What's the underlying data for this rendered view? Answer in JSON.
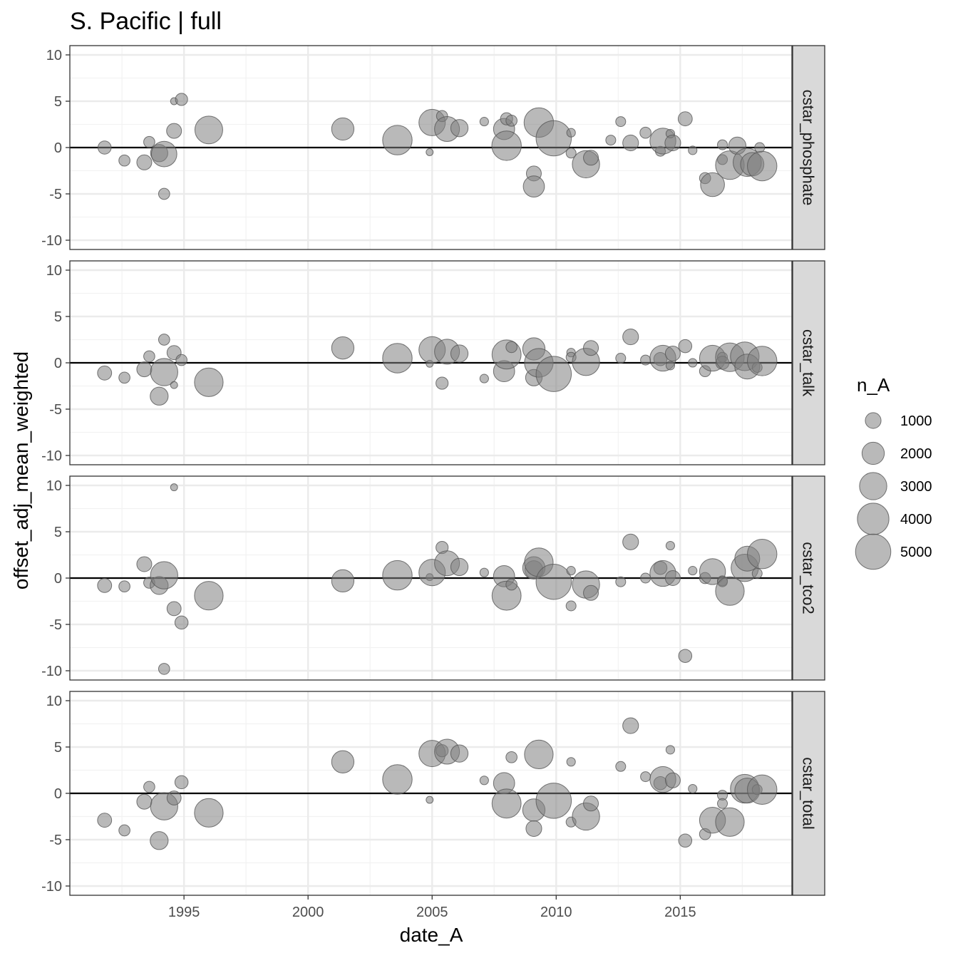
{
  "chart_data": {
    "type": "scatter",
    "title": "S. Pacific | full",
    "xlabel": "date_A",
    "ylabel": "offset_adj_mean_weighted",
    "xlim": [
      1990.4,
      2019.5
    ],
    "ylim": [
      -11,
      11
    ],
    "x_ticks": [
      1995,
      2000,
      2005,
      2010,
      2015
    ],
    "x_tick_labels": [
      "1995",
      "2000",
      "2005",
      "2010",
      "2015"
    ],
    "y_ticks": [
      -10,
      -5,
      0,
      5,
      10
    ],
    "y_tick_labels": [
      "-10",
      "-5",
      "0",
      "5",
      "10"
    ],
    "reference_line_y": 0,
    "grid": true,
    "point_color": "#808080",
    "point_alpha": 0.55,
    "legend": {
      "title": "n_A",
      "position": "right",
      "values": [
        1000,
        2000,
        3000,
        4000,
        5000
      ],
      "labels": [
        "1000",
        "2000",
        "3000",
        "4000",
        "5000"
      ]
    },
    "panels": [
      {
        "label": "cstar_phosphate",
        "points": [
          {
            "x": 1991.8,
            "y": 0.0,
            "n": 700
          },
          {
            "x": 1992.6,
            "y": -1.4,
            "n": 500
          },
          {
            "x": 1993.4,
            "y": -1.6,
            "n": 900
          },
          {
            "x": 1993.6,
            "y": 0.6,
            "n": 500
          },
          {
            "x": 1994.0,
            "y": -0.6,
            "n": 1200
          },
          {
            "x": 1994.2,
            "y": -0.7,
            "n": 2600
          },
          {
            "x": 1994.2,
            "y": -5.0,
            "n": 500
          },
          {
            "x": 1994.6,
            "y": 5.0,
            "n": 200
          },
          {
            "x": 1994.6,
            "y": 1.8,
            "n": 900
          },
          {
            "x": 1994.9,
            "y": 5.2,
            "n": 600
          },
          {
            "x": 1996.0,
            "y": 1.9,
            "n": 3100
          },
          {
            "x": 2001.4,
            "y": 2.0,
            "n": 2000
          },
          {
            "x": 2003.6,
            "y": 0.8,
            "n": 3500
          },
          {
            "x": 2004.9,
            "y": -0.5,
            "n": 200
          },
          {
            "x": 2005.0,
            "y": 2.7,
            "n": 2800
          },
          {
            "x": 2005.4,
            "y": 3.4,
            "n": 500
          },
          {
            "x": 2005.6,
            "y": 2.0,
            "n": 2500
          },
          {
            "x": 2006.1,
            "y": 2.1,
            "n": 1200
          },
          {
            "x": 2007.1,
            "y": 2.8,
            "n": 300
          },
          {
            "x": 2007.9,
            "y": 2.0,
            "n": 1800
          },
          {
            "x": 2008.0,
            "y": 3.1,
            "n": 600
          },
          {
            "x": 2008.0,
            "y": 0.2,
            "n": 3500
          },
          {
            "x": 2008.2,
            "y": 2.9,
            "n": 500
          },
          {
            "x": 2009.1,
            "y": -2.8,
            "n": 900
          },
          {
            "x": 2009.1,
            "y": -4.2,
            "n": 1800
          },
          {
            "x": 2009.3,
            "y": 2.7,
            "n": 3500
          },
          {
            "x": 2009.9,
            "y": 1.0,
            "n": 5000
          },
          {
            "x": 2010.6,
            "y": 1.6,
            "n": 300
          },
          {
            "x": 2010.6,
            "y": -0.6,
            "n": 400
          },
          {
            "x": 2011.2,
            "y": -1.8,
            "n": 3000
          },
          {
            "x": 2011.4,
            "y": -1.1,
            "n": 900
          },
          {
            "x": 2012.2,
            "y": 0.8,
            "n": 400
          },
          {
            "x": 2012.6,
            "y": 2.8,
            "n": 400
          },
          {
            "x": 2013.0,
            "y": 0.5,
            "n": 1000
          },
          {
            "x": 2013.6,
            "y": 1.6,
            "n": 500
          },
          {
            "x": 2014.2,
            "y": -0.4,
            "n": 400
          },
          {
            "x": 2014.3,
            "y": 0.7,
            "n": 2700
          },
          {
            "x": 2014.6,
            "y": 1.5,
            "n": 300
          },
          {
            "x": 2014.7,
            "y": 0.5,
            "n": 1000
          },
          {
            "x": 2015.2,
            "y": 3.1,
            "n": 800
          },
          {
            "x": 2015.5,
            "y": -0.3,
            "n": 300
          },
          {
            "x": 2016.0,
            "y": -3.3,
            "n": 500
          },
          {
            "x": 2016.3,
            "y": -4.0,
            "n": 2300
          },
          {
            "x": 2016.7,
            "y": 0.3,
            "n": 400
          },
          {
            "x": 2016.7,
            "y": -1.3,
            "n": 400
          },
          {
            "x": 2017.0,
            "y": -1.9,
            "n": 3300
          },
          {
            "x": 2017.3,
            "y": 0.2,
            "n": 1200
          },
          {
            "x": 2017.7,
            "y": -1.6,
            "n": 3200
          },
          {
            "x": 2017.9,
            "y": -1.8,
            "n": 2200
          },
          {
            "x": 2018.2,
            "y": 0.0,
            "n": 400
          },
          {
            "x": 2018.3,
            "y": -2.0,
            "n": 3500
          }
        ]
      },
      {
        "label": "cstar_talk",
        "points": [
          {
            "x": 1991.8,
            "y": -1.1,
            "n": 800
          },
          {
            "x": 1992.6,
            "y": -1.6,
            "n": 500
          },
          {
            "x": 1993.4,
            "y": -0.7,
            "n": 900
          },
          {
            "x": 1993.6,
            "y": 0.7,
            "n": 500
          },
          {
            "x": 1994.0,
            "y": -3.6,
            "n": 1300
          },
          {
            "x": 1994.2,
            "y": -1.0,
            "n": 3000
          },
          {
            "x": 1994.2,
            "y": 2.5,
            "n": 500
          },
          {
            "x": 1994.6,
            "y": -2.4,
            "n": 200
          },
          {
            "x": 1994.6,
            "y": 1.1,
            "n": 800
          },
          {
            "x": 1994.9,
            "y": 0.3,
            "n": 500
          },
          {
            "x": 1996.0,
            "y": -2.1,
            "n": 3300
          },
          {
            "x": 2001.4,
            "y": 1.6,
            "n": 2000
          },
          {
            "x": 2003.6,
            "y": 0.5,
            "n": 3500
          },
          {
            "x": 2004.9,
            "y": -0.1,
            "n": 200
          },
          {
            "x": 2005.0,
            "y": 1.4,
            "n": 2800
          },
          {
            "x": 2005.4,
            "y": -2.2,
            "n": 600
          },
          {
            "x": 2005.6,
            "y": 1.2,
            "n": 2500
          },
          {
            "x": 2006.1,
            "y": 1.0,
            "n": 1200
          },
          {
            "x": 2007.1,
            "y": -1.7,
            "n": 300
          },
          {
            "x": 2007.9,
            "y": -0.9,
            "n": 1800
          },
          {
            "x": 2008.0,
            "y": 0.9,
            "n": 3400
          },
          {
            "x": 2008.2,
            "y": 1.7,
            "n": 500
          },
          {
            "x": 2009.1,
            "y": -1.6,
            "n": 1100
          },
          {
            "x": 2009.1,
            "y": 1.5,
            "n": 2000
          },
          {
            "x": 2009.3,
            "y": 0.0,
            "n": 3300
          },
          {
            "x": 2009.9,
            "y": -1.2,
            "n": 5000
          },
          {
            "x": 2010.6,
            "y": 1.1,
            "n": 300
          },
          {
            "x": 2010.6,
            "y": 0.6,
            "n": 400
          },
          {
            "x": 2011.2,
            "y": 0.1,
            "n": 3000
          },
          {
            "x": 2011.4,
            "y": 1.6,
            "n": 900
          },
          {
            "x": 2012.6,
            "y": 0.5,
            "n": 400
          },
          {
            "x": 2013.0,
            "y": 2.8,
            "n": 1000
          },
          {
            "x": 2013.6,
            "y": 0.3,
            "n": 400
          },
          {
            "x": 2014.2,
            "y": 0.4,
            "n": 700
          },
          {
            "x": 2014.3,
            "y": 0.5,
            "n": 2700
          },
          {
            "x": 2014.6,
            "y": -0.3,
            "n": 300
          },
          {
            "x": 2014.7,
            "y": 1.0,
            "n": 900
          },
          {
            "x": 2015.2,
            "y": 1.8,
            "n": 700
          },
          {
            "x": 2015.5,
            "y": 0.0,
            "n": 300
          },
          {
            "x": 2016.0,
            "y": -0.9,
            "n": 500
          },
          {
            "x": 2016.3,
            "y": 0.5,
            "n": 2700
          },
          {
            "x": 2016.7,
            "y": 0.6,
            "n": 400
          },
          {
            "x": 2016.7,
            "y": 0.0,
            "n": 700
          },
          {
            "x": 2017.0,
            "y": 0.6,
            "n": 3300
          },
          {
            "x": 2017.6,
            "y": 0.7,
            "n": 3300
          },
          {
            "x": 2017.7,
            "y": -0.4,
            "n": 2500
          },
          {
            "x": 2018.1,
            "y": -0.5,
            "n": 400
          },
          {
            "x": 2018.3,
            "y": 0.2,
            "n": 3500
          }
        ]
      },
      {
        "label": "cstar_tco2",
        "points": [
          {
            "x": 1991.8,
            "y": -0.8,
            "n": 800
          },
          {
            "x": 1992.6,
            "y": -0.9,
            "n": 500
          },
          {
            "x": 1993.4,
            "y": 1.5,
            "n": 900
          },
          {
            "x": 1993.6,
            "y": -0.5,
            "n": 500
          },
          {
            "x": 1994.0,
            "y": -0.8,
            "n": 1300
          },
          {
            "x": 1994.2,
            "y": 0.3,
            "n": 3000
          },
          {
            "x": 1994.2,
            "y": -9.8,
            "n": 500
          },
          {
            "x": 1994.6,
            "y": 9.8,
            "n": 200
          },
          {
            "x": 1994.6,
            "y": -3.3,
            "n": 800
          },
          {
            "x": 1994.9,
            "y": -4.8,
            "n": 700
          },
          {
            "x": 1996.0,
            "y": -1.9,
            "n": 3300
          },
          {
            "x": 2001.4,
            "y": -0.3,
            "n": 2000
          },
          {
            "x": 2003.6,
            "y": 0.3,
            "n": 3500
          },
          {
            "x": 2004.9,
            "y": 0.1,
            "n": 200
          },
          {
            "x": 2005.0,
            "y": 0.6,
            "n": 2800
          },
          {
            "x": 2005.4,
            "y": 3.3,
            "n": 600
          },
          {
            "x": 2005.6,
            "y": 1.6,
            "n": 2500
          },
          {
            "x": 2006.1,
            "y": 1.2,
            "n": 1200
          },
          {
            "x": 2007.1,
            "y": 0.6,
            "n": 300
          },
          {
            "x": 2007.9,
            "y": 0.2,
            "n": 1800
          },
          {
            "x": 2008.0,
            "y": -1.9,
            "n": 3400
          },
          {
            "x": 2008.2,
            "y": -0.7,
            "n": 500
          },
          {
            "x": 2009.1,
            "y": 0.9,
            "n": 1300
          },
          {
            "x": 2009.1,
            "y": 1.1,
            "n": 2000
          },
          {
            "x": 2009.3,
            "y": 1.7,
            "n": 3300
          },
          {
            "x": 2009.9,
            "y": -0.4,
            "n": 5000
          },
          {
            "x": 2010.6,
            "y": 0.8,
            "n": 300
          },
          {
            "x": 2010.6,
            "y": -3.0,
            "n": 400
          },
          {
            "x": 2011.2,
            "y": -0.7,
            "n": 3000
          },
          {
            "x": 2011.4,
            "y": -1.6,
            "n": 900
          },
          {
            "x": 2012.6,
            "y": -0.4,
            "n": 400
          },
          {
            "x": 2013.0,
            "y": 3.9,
            "n": 1000
          },
          {
            "x": 2013.6,
            "y": 0.0,
            "n": 400
          },
          {
            "x": 2014.2,
            "y": 1.1,
            "n": 700
          },
          {
            "x": 2014.3,
            "y": 0.5,
            "n": 2700
          },
          {
            "x": 2014.6,
            "y": 3.5,
            "n": 300
          },
          {
            "x": 2014.7,
            "y": 0.0,
            "n": 900
          },
          {
            "x": 2015.2,
            "y": -8.4,
            "n": 700
          },
          {
            "x": 2015.5,
            "y": 0.8,
            "n": 300
          },
          {
            "x": 2016.0,
            "y": 0.0,
            "n": 500
          },
          {
            "x": 2016.3,
            "y": 0.7,
            "n": 2700
          },
          {
            "x": 2016.7,
            "y": -0.3,
            "n": 400
          },
          {
            "x": 2016.7,
            "y": -0.4,
            "n": 400
          },
          {
            "x": 2017.0,
            "y": -1.4,
            "n": 3300
          },
          {
            "x": 2017.6,
            "y": 1.1,
            "n": 3000
          },
          {
            "x": 2017.7,
            "y": 2.1,
            "n": 2500
          },
          {
            "x": 2018.1,
            "y": 0.5,
            "n": 400
          },
          {
            "x": 2018.3,
            "y": 2.6,
            "n": 3500
          }
        ]
      },
      {
        "label": "cstar_total",
        "points": [
          {
            "x": 1991.8,
            "y": -2.9,
            "n": 800
          },
          {
            "x": 1992.6,
            "y": -4.0,
            "n": 500
          },
          {
            "x": 1993.4,
            "y": -0.9,
            "n": 900
          },
          {
            "x": 1993.6,
            "y": 0.7,
            "n": 500
          },
          {
            "x": 1994.0,
            "y": -5.1,
            "n": 1300
          },
          {
            "x": 1994.2,
            "y": -1.4,
            "n": 3000
          },
          {
            "x": 1994.6,
            "y": -0.5,
            "n": 800
          },
          {
            "x": 1994.9,
            "y": 1.2,
            "n": 700
          },
          {
            "x": 1996.0,
            "y": -2.1,
            "n": 3300
          },
          {
            "x": 2001.4,
            "y": 3.4,
            "n": 2000
          },
          {
            "x": 2003.6,
            "y": 1.5,
            "n": 3500
          },
          {
            "x": 2004.9,
            "y": -0.7,
            "n": 200
          },
          {
            "x": 2005.0,
            "y": 4.3,
            "n": 2800
          },
          {
            "x": 2005.4,
            "y": 4.6,
            "n": 600
          },
          {
            "x": 2005.6,
            "y": 4.5,
            "n": 2500
          },
          {
            "x": 2006.1,
            "y": 4.3,
            "n": 1200
          },
          {
            "x": 2007.1,
            "y": 1.4,
            "n": 300
          },
          {
            "x": 2007.9,
            "y": 1.1,
            "n": 1800
          },
          {
            "x": 2008.0,
            "y": -1.1,
            "n": 3400
          },
          {
            "x": 2008.2,
            "y": 3.9,
            "n": 500
          },
          {
            "x": 2009.1,
            "y": -3.8,
            "n": 1000
          },
          {
            "x": 2009.1,
            "y": -1.8,
            "n": 2000
          },
          {
            "x": 2009.3,
            "y": 4.2,
            "n": 3300
          },
          {
            "x": 2009.9,
            "y": -0.8,
            "n": 5000
          },
          {
            "x": 2010.6,
            "y": 3.4,
            "n": 300
          },
          {
            "x": 2010.6,
            "y": -3.1,
            "n": 400
          },
          {
            "x": 2011.2,
            "y": -2.5,
            "n": 3000
          },
          {
            "x": 2011.4,
            "y": -1.1,
            "n": 900
          },
          {
            "x": 2012.6,
            "y": 2.9,
            "n": 400
          },
          {
            "x": 2013.0,
            "y": 7.3,
            "n": 1000
          },
          {
            "x": 2013.6,
            "y": 1.8,
            "n": 400
          },
          {
            "x": 2014.2,
            "y": 1.1,
            "n": 700
          },
          {
            "x": 2014.3,
            "y": 1.5,
            "n": 2700
          },
          {
            "x": 2014.6,
            "y": 4.7,
            "n": 300
          },
          {
            "x": 2014.7,
            "y": 1.4,
            "n": 900
          },
          {
            "x": 2015.2,
            "y": -5.1,
            "n": 700
          },
          {
            "x": 2015.5,
            "y": 0.5,
            "n": 300
          },
          {
            "x": 2016.0,
            "y": -4.4,
            "n": 500
          },
          {
            "x": 2016.3,
            "y": -2.9,
            "n": 2700
          },
          {
            "x": 2016.7,
            "y": -0.2,
            "n": 400
          },
          {
            "x": 2016.7,
            "y": -1.1,
            "n": 400
          },
          {
            "x": 2017.0,
            "y": -3.1,
            "n": 3300
          },
          {
            "x": 2017.6,
            "y": 0.5,
            "n": 3300
          },
          {
            "x": 2017.7,
            "y": 0.3,
            "n": 2500
          },
          {
            "x": 2018.1,
            "y": 0.4,
            "n": 400
          },
          {
            "x": 2018.3,
            "y": 0.4,
            "n": 3500
          }
        ]
      }
    ]
  }
}
